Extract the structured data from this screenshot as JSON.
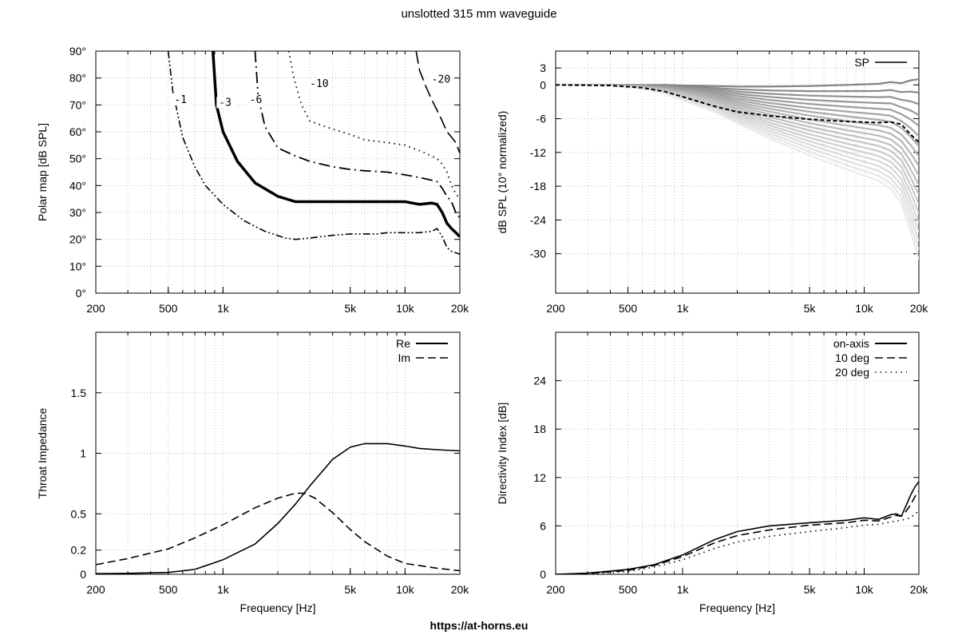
{
  "title": "unslotted 315 mm waveguide",
  "footer": "https://at-horns.eu",
  "chart_data": [
    {
      "id": "polar",
      "type": "line",
      "subtype": "contour",
      "xlabel": "",
      "ylabel": "Polar map [dB SPL]",
      "xscale": "log",
      "xlim": [
        200,
        20000
      ],
      "ylim": [
        0,
        90
      ],
      "xticks": [
        200,
        500,
        1000,
        5000,
        10000,
        20000
      ],
      "xtick_labels": [
        "200",
        "500",
        "1k",
        "5k",
        "10k",
        "20k"
      ],
      "yticks": [
        0,
        10,
        20,
        30,
        40,
        50,
        60,
        70,
        80,
        90
      ],
      "ytick_labels": [
        "0°",
        "10°",
        "20°",
        "30°",
        "40°",
        "50°",
        "60°",
        "70°",
        "80°",
        "90°"
      ],
      "grid": true,
      "series": [
        {
          "name": "-1",
          "style": "dashdotdot",
          "width": 1.6,
          "label_at": [
            540,
            71
          ],
          "x": [
            500,
            530,
            600,
            700,
            800,
            1000,
            1300,
            1700,
            2200,
            2500,
            3000,
            4000,
            5000,
            6000,
            7000,
            8000,
            10000,
            12000,
            14000,
            15000,
            16000,
            17000,
            18000,
            19000,
            20000
          ],
          "y": [
            90,
            75,
            58,
            47,
            40,
            33,
            27,
            23,
            20.5,
            20,
            20.5,
            21.5,
            22,
            22,
            22,
            22.5,
            22.5,
            22.5,
            23,
            24,
            21,
            17,
            15.5,
            15,
            14.5
          ]
        },
        {
          "name": "-3",
          "style": "solid",
          "width": 3.5,
          "label_at": [
            950,
            70
          ],
          "x": [
            880,
            920,
            1000,
            1200,
            1500,
            2000,
            2500,
            3000,
            4000,
            5000,
            6000,
            7000,
            8000,
            10000,
            12000,
            14000,
            15000,
            16000,
            17000,
            18000,
            19000,
            20000
          ],
          "y": [
            90,
            70,
            60,
            49,
            41,
            36,
            34,
            34,
            34,
            34,
            34,
            34,
            34,
            34,
            33,
            33.5,
            33,
            30,
            26,
            24,
            22.5,
            21
          ]
        },
        {
          "name": "-6",
          "style": "dashdot",
          "width": 1.8,
          "label_at": [
            1400,
            71
          ],
          "x": [
            1500,
            1560,
            1700,
            2000,
            2500,
            3000,
            4000,
            5000,
            6000,
            8000,
            10000,
            12000,
            14000,
            15000,
            16000,
            17000,
            18000,
            19000,
            20000
          ],
          "y": [
            90,
            73,
            62,
            54,
            51,
            49,
            47,
            46,
            45.5,
            45,
            44,
            43,
            42,
            41.5,
            39,
            36,
            34,
            30,
            28
          ]
        },
        {
          "name": "-10",
          "style": "dotted",
          "width": 1.8,
          "label_at": [
            3000,
            77
          ],
          "x": [
            2300,
            2450,
            2700,
            3000,
            4000,
            5000,
            6000,
            8000,
            10000,
            12000,
            14000,
            15000,
            16000,
            17000,
            18000,
            19000,
            20000
          ],
          "y": [
            90,
            80,
            70,
            64,
            61,
            59,
            57,
            56,
            55,
            53,
            51,
            50,
            48,
            45,
            40,
            37,
            35
          ]
        },
        {
          "name": "-20",
          "style": "longdash",
          "width": 1.6,
          "label_at": [
            14000,
            78.5
          ],
          "x": [
            11500,
            12000,
            13000,
            14000,
            15000,
            16000,
            17000,
            18000,
            19000,
            20000
          ],
          "y": [
            90,
            83,
            77,
            72,
            68,
            64,
            60,
            58,
            56,
            52
          ]
        }
      ]
    },
    {
      "id": "spl",
      "type": "line",
      "xlabel": "",
      "ylabel": "dB SPL (10° normalized)",
      "xscale": "log",
      "xlim": [
        200,
        20000
      ],
      "ylim": [
        -37,
        6
      ],
      "xticks": [
        200,
        500,
        1000,
        5000,
        10000,
        20000
      ],
      "xtick_labels": [
        "200",
        "500",
        "1k",
        "5k",
        "10k",
        "20k"
      ],
      "yticks": [
        3,
        0,
        -6,
        -12,
        -18,
        -24,
        -30
      ],
      "ytick_labels": [
        "3",
        "0",
        "-6",
        "-12",
        "-18",
        "-24",
        "-30"
      ],
      "grid": true,
      "legend": {
        "position": "top-right",
        "entries": [
          "SP"
        ]
      },
      "x": [
        200,
        400,
        600,
        800,
        1000,
        1500,
        2000,
        3000,
        5000,
        8000,
        12000,
        14000,
        16000,
        18000,
        20000
      ],
      "angle_family": {
        "angles_deg": [
          0,
          10,
          20,
          30,
          40,
          50,
          60,
          70,
          80,
          90
        ],
        "count": 19,
        "top_curve": [
          0,
          0,
          0,
          0,
          -0.1,
          -0.2,
          -0.3,
          -0.3,
          -0.2,
          0,
          0.2,
          0.5,
          0.3,
          0.8,
          1.0
        ],
        "bottom_curve": [
          0,
          -0.2,
          -0.7,
          -1.6,
          -2.7,
          -4.8,
          -6.8,
          -9.5,
          -12.5,
          -15,
          -17,
          -18.5,
          -21,
          -26,
          -31
        ],
        "exponent": 0.9
      },
      "series": [
        {
          "name": "SP",
          "x": [
            200,
            400,
            600,
            800,
            1000,
            1500,
            2000,
            3000,
            5000,
            8000,
            12000,
            14000,
            16000,
            18000,
            20000
          ],
          "y": [
            0,
            -0.1,
            -0.5,
            -1.2,
            -2.1,
            -3.8,
            -4.8,
            -5.5,
            -6.1,
            -6.5,
            -6.7,
            -6.6,
            -7.0,
            -8.8,
            -10.2
          ]
        }
      ]
    },
    {
      "id": "impedance",
      "type": "line",
      "xlabel": "Frequency [Hz]",
      "ylabel": "Throat Impedance",
      "xscale": "log",
      "xlim": [
        200,
        20000
      ],
      "ylim": [
        0,
        2
      ],
      "xticks": [
        200,
        500,
        1000,
        5000,
        10000,
        20000
      ],
      "xtick_labels": [
        "200",
        "500",
        "1k",
        "5k",
        "10k",
        "20k"
      ],
      "yticks": [
        0,
        0.2,
        0.5,
        1,
        1.5
      ],
      "ytick_labels": [
        "0",
        "0.2",
        "0.5",
        "1",
        "1.5"
      ],
      "grid": true,
      "legend": {
        "position": "top-right",
        "entries": [
          "Re",
          "Im"
        ]
      },
      "series": [
        {
          "name": "Re",
          "style": "solid",
          "x": [
            200,
            300,
            500,
            700,
            1000,
            1500,
            2000,
            2500,
            3000,
            4000,
            5000,
            6000,
            8000,
            10000,
            12000,
            15000,
            20000
          ],
          "y": [
            0.005,
            0.008,
            0.015,
            0.04,
            0.12,
            0.25,
            0.42,
            0.58,
            0.73,
            0.95,
            1.05,
            1.08,
            1.08,
            1.06,
            1.04,
            1.03,
            1.02
          ]
        },
        {
          "name": "Im",
          "style": "dashed",
          "x": [
            200,
            300,
            500,
            700,
            1000,
            1500,
            2000,
            2500,
            2800,
            3200,
            4000,
            5000,
            6000,
            8000,
            10000,
            15000,
            20000
          ],
          "y": [
            0.08,
            0.13,
            0.21,
            0.3,
            0.41,
            0.55,
            0.63,
            0.67,
            0.67,
            0.63,
            0.51,
            0.37,
            0.27,
            0.15,
            0.09,
            0.05,
            0.03
          ]
        }
      ]
    },
    {
      "id": "di",
      "type": "line",
      "xlabel": "Frequency [Hz]",
      "ylabel": "Directivity Index [dB]",
      "xscale": "log",
      "xlim": [
        200,
        20000
      ],
      "ylim": [
        0,
        30
      ],
      "xticks": [
        200,
        500,
        1000,
        5000,
        10000,
        20000
      ],
      "xtick_labels": [
        "200",
        "500",
        "1k",
        "5k",
        "10k",
        "20k"
      ],
      "yticks": [
        0,
        6,
        12,
        18,
        24
      ],
      "ytick_labels": [
        "0",
        "6",
        "12",
        "18",
        "24"
      ],
      "grid": true,
      "legend": {
        "position": "top-right",
        "entries": [
          "on-axis",
          "10 deg",
          "20 deg"
        ]
      },
      "series": [
        {
          "name": "on-axis",
          "style": "solid",
          "x": [
            200,
            300,
            500,
            700,
            1000,
            1500,
            2000,
            3000,
            5000,
            8000,
            10000,
            12000,
            14000,
            15000,
            16000,
            17000,
            18000,
            19000,
            20000
          ],
          "y": [
            0,
            0.15,
            0.6,
            1.2,
            2.4,
            4.3,
            5.3,
            6.0,
            6.4,
            6.7,
            7.0,
            6.8,
            7.4,
            7.5,
            7.2,
            8.5,
            9.8,
            10.8,
            11.5
          ]
        },
        {
          "name": "10 deg",
          "style": "dashed",
          "x": [
            200,
            300,
            500,
            700,
            1000,
            1500,
            2000,
            3000,
            5000,
            8000,
            10000,
            12000,
            14000,
            15000,
            16000,
            17000,
            18000,
            19000,
            20000
          ],
          "y": [
            0,
            0.1,
            0.5,
            1.1,
            2.2,
            3.9,
            4.8,
            5.5,
            6.1,
            6.4,
            6.7,
            6.6,
            7.1,
            7.3,
            7.2,
            7.8,
            8.6,
            9.6,
            10.3
          ]
        },
        {
          "name": "20 deg",
          "style": "dotted",
          "x": [
            200,
            300,
            500,
            700,
            1000,
            1500,
            2000,
            3000,
            5000,
            8000,
            10000,
            12000,
            14000,
            16000,
            18000,
            19000,
            20000
          ],
          "y": [
            0,
            0.05,
            0.35,
            0.9,
            1.8,
            3.2,
            4.0,
            4.7,
            5.3,
            5.8,
            6.1,
            6.2,
            6.5,
            6.7,
            7.0,
            7.5,
            7.8
          ]
        }
      ]
    }
  ]
}
